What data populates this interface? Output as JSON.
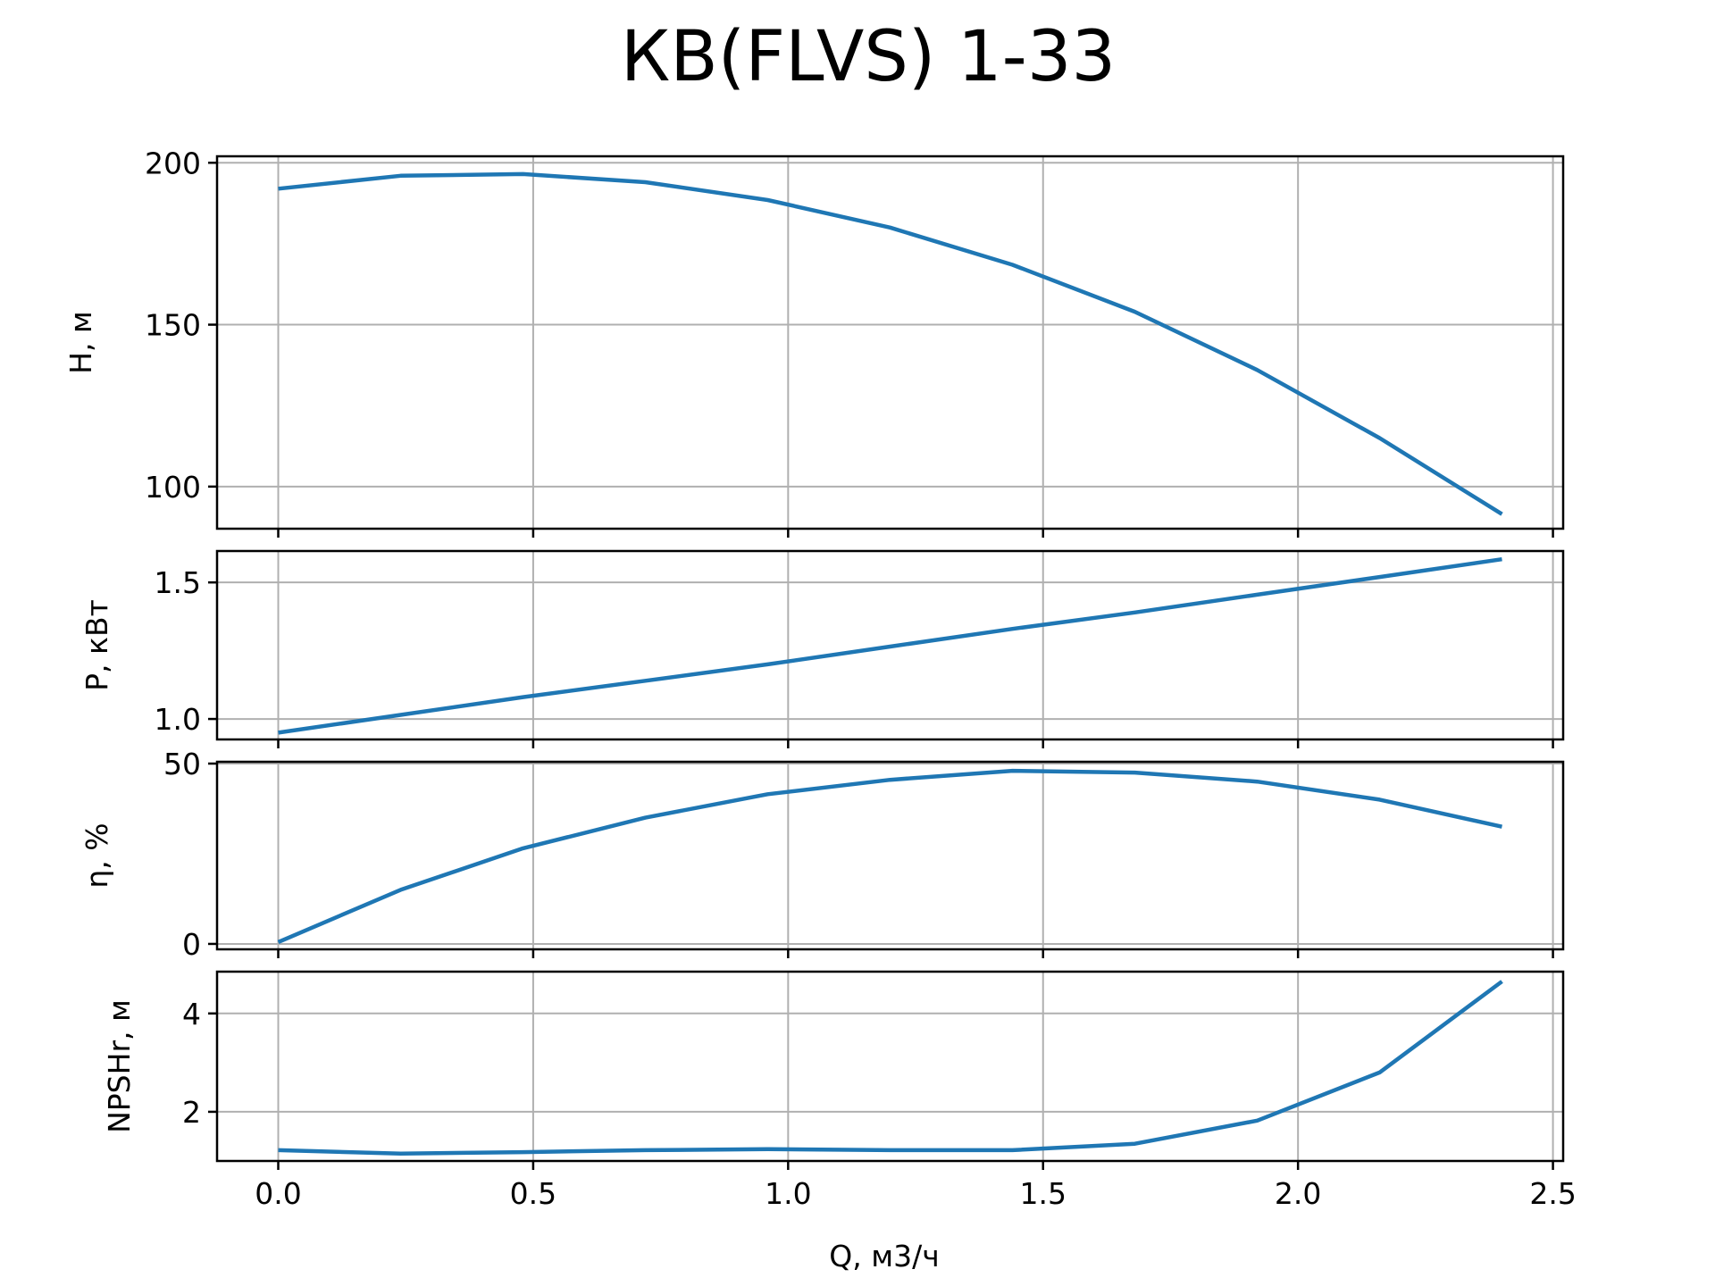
{
  "chart_data": {
    "title": "КВ(FLVS) 1-33",
    "xlabel": "Q, м3/ч",
    "x": [
      0.0,
      0.24,
      0.48,
      0.72,
      0.96,
      1.2,
      1.44,
      1.68,
      1.92,
      2.16,
      2.4
    ],
    "xlim": [
      -0.12,
      2.52
    ],
    "xticks": [
      "0.0",
      "0.5",
      "1.0",
      "1.5",
      "2.0",
      "2.5"
    ],
    "xtick_values": [
      0.0,
      0.5,
      1.0,
      1.5,
      2.0,
      2.5
    ],
    "grid": true,
    "line_color": "#1f77b4",
    "subplots": [
      {
        "type": "line",
        "ylabel": "H, м",
        "ylim": [
          87,
          202
        ],
        "yticks": [
          "100",
          "150",
          "200"
        ],
        "ytick_values": [
          100,
          150,
          200
        ],
        "values": [
          192,
          196,
          196.5,
          194,
          188.5,
          180,
          168.5,
          154,
          136,
          115,
          91.5
        ]
      },
      {
        "type": "line",
        "ylabel": "P, кВт",
        "ylim": [
          0.925,
          1.615
        ],
        "yticks": [
          "1.0",
          "1.5"
        ],
        "ytick_values": [
          1.0,
          1.5
        ],
        "values": [
          0.95,
          1.015,
          1.08,
          1.14,
          1.2,
          1.265,
          1.33,
          1.39,
          1.455,
          1.52,
          1.585
        ]
      },
      {
        "type": "line",
        "ylabel": "η, %",
        "ylim": [
          -1.5,
          50.5
        ],
        "yticks": [
          "0",
          "50"
        ],
        "ytick_values": [
          0,
          50
        ],
        "values": [
          0.5,
          15,
          26.5,
          35,
          41.5,
          45.5,
          48,
          47.5,
          45,
          40,
          32.5
        ]
      },
      {
        "type": "line",
        "ylabel": "NPSHr, м",
        "ylim": [
          1,
          4.85
        ],
        "yticks": [
          "2",
          "4"
        ],
        "ytick_values": [
          2,
          4
        ],
        "values": [
          1.22,
          1.15,
          1.18,
          1.22,
          1.24,
          1.22,
          1.22,
          1.35,
          1.82,
          2.8,
          4.65
        ]
      }
    ]
  }
}
